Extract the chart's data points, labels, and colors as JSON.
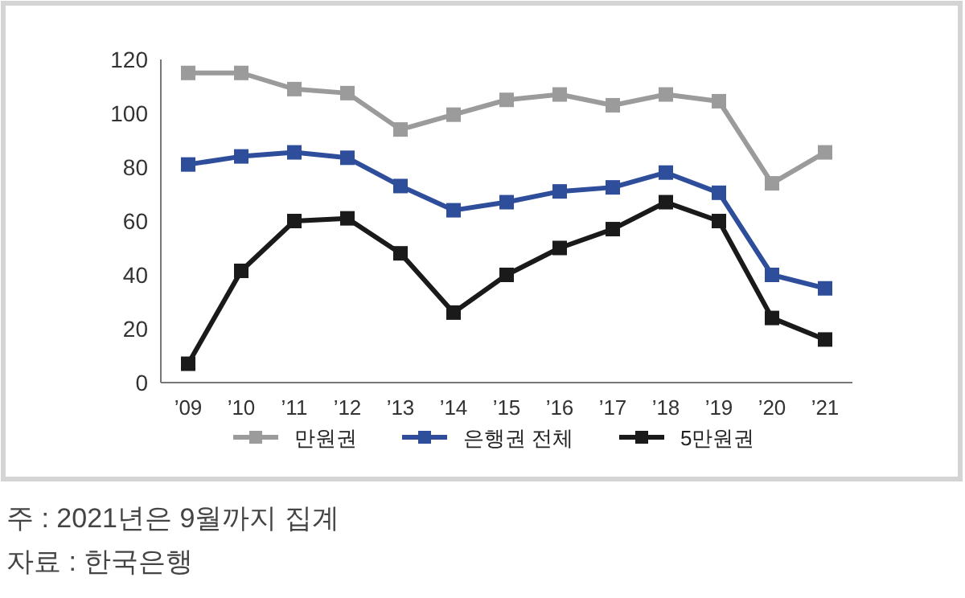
{
  "chart_data": {
    "type": "line",
    "categories": [
      "’09",
      "’10",
      "’11",
      "’12",
      "’13",
      "’14",
      "’15",
      "’16",
      "’17",
      "’18",
      "’19",
      "’20",
      "’21"
    ],
    "series": [
      {
        "name": "만원권",
        "color": "#9b9b9b",
        "values": [
          115,
          115,
          109,
          107.5,
          94,
          99.5,
          105,
          107,
          103,
          107,
          104.5,
          74,
          85.5
        ]
      },
      {
        "name": "은행권 전체",
        "color": "#2e4d9b",
        "values": [
          81,
          84,
          85.5,
          83.5,
          73,
          64,
          67,
          71,
          72.5,
          78,
          70.5,
          40,
          35
        ]
      },
      {
        "name": "5만원권",
        "color": "#1a1a1a",
        "values": [
          7,
          41.5,
          60,
          61,
          48,
          26,
          40,
          50,
          57,
          67,
          60,
          24,
          16
        ]
      }
    ],
    "ylim": [
      0,
      120
    ],
    "yticks": [
      0,
      20,
      40,
      60,
      80,
      100,
      120
    ],
    "grid": false,
    "legend": "bottom",
    "marker": "square",
    "line_style": "solid",
    "annotations": [
      "주 : 2021년은 9월까지 집계",
      "자료 : 한국은행"
    ]
  }
}
